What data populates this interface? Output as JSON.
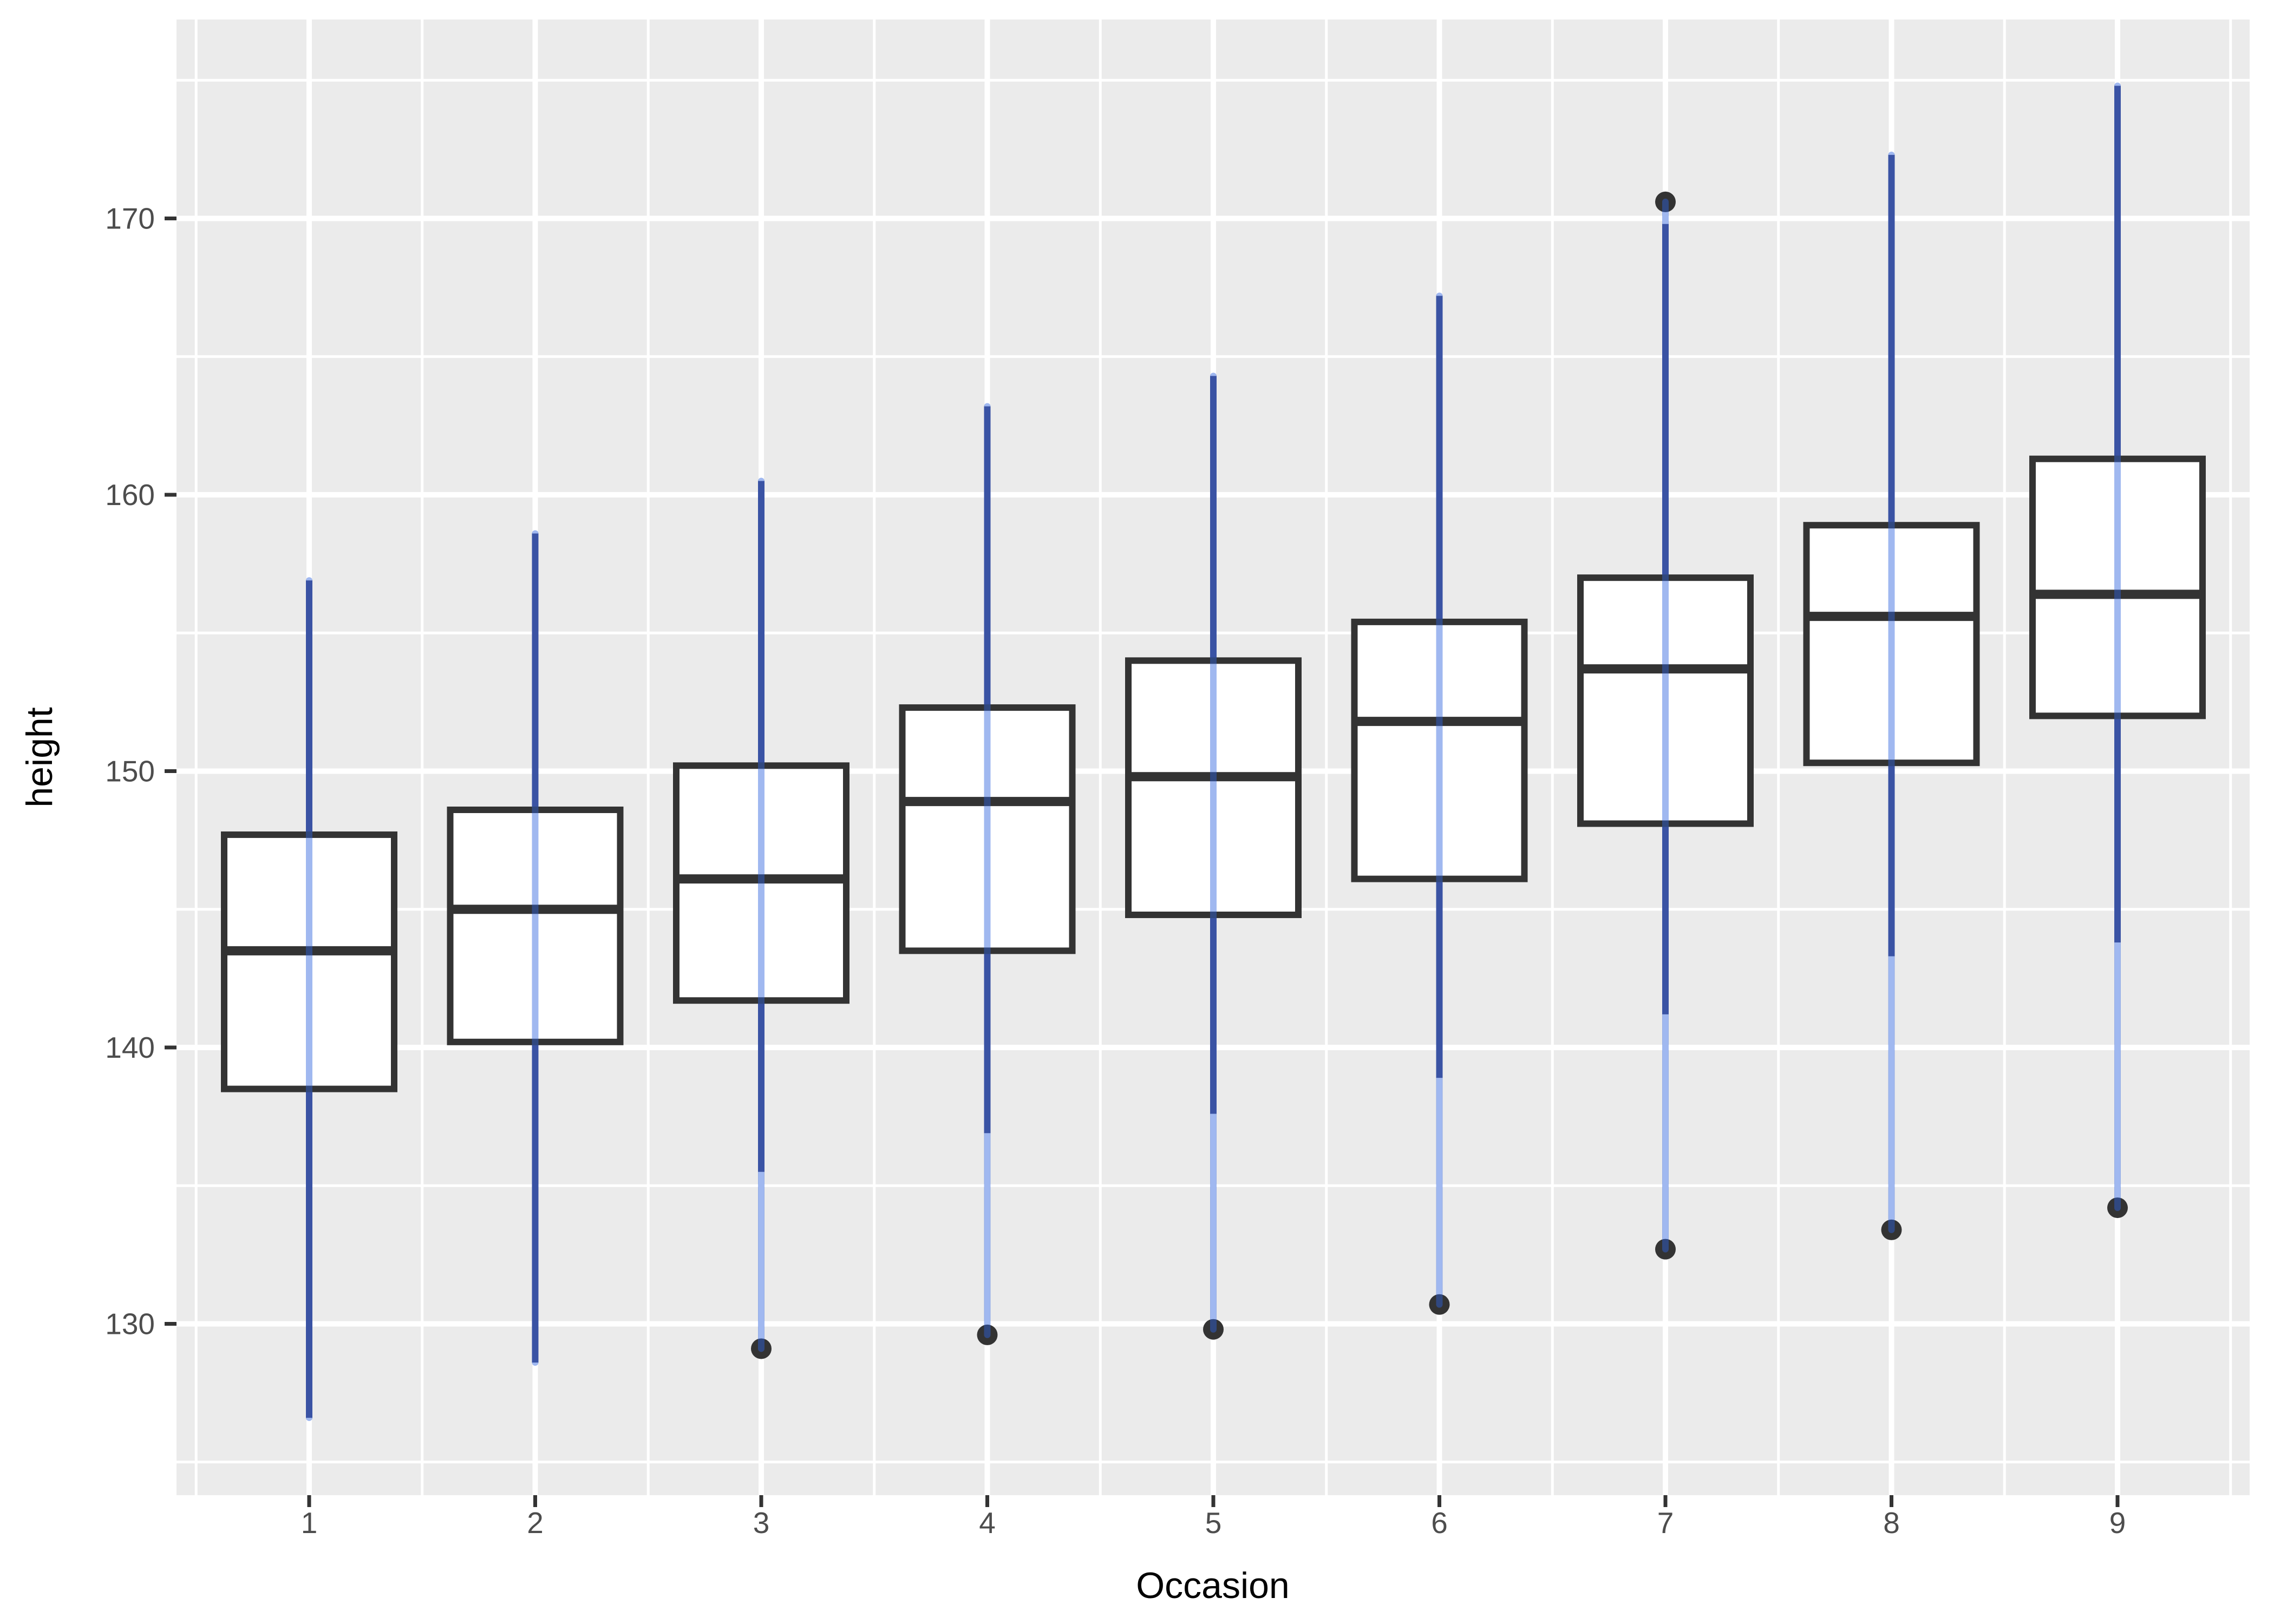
{
  "chart_data": {
    "type": "boxplot",
    "title": "",
    "xlabel": "Occasion",
    "ylabel": "height",
    "categories": [
      "1",
      "2",
      "3",
      "4",
      "5",
      "6",
      "7",
      "8",
      "9"
    ],
    "yticks": [
      130,
      140,
      150,
      160,
      170
    ],
    "y_minor_ticks": [
      125,
      135,
      145,
      155,
      165,
      175
    ],
    "ylim": [
      123.8,
      177.2
    ],
    "grid": "on",
    "legend": "none",
    "series": [
      {
        "occasion": 1,
        "whisker_low": 126.6,
        "q1": 138.5,
        "median": 143.5,
        "q3": 147.7,
        "whisker_high": 156.9,
        "outliers": []
      },
      {
        "occasion": 2,
        "whisker_low": 128.6,
        "q1": 140.2,
        "median": 145.0,
        "q3": 148.6,
        "whisker_high": 158.6,
        "outliers": []
      },
      {
        "occasion": 3,
        "whisker_low": 135.5,
        "q1": 141.7,
        "median": 146.1,
        "q3": 150.2,
        "whisker_high": 160.5,
        "outliers": [
          129.1
        ]
      },
      {
        "occasion": 4,
        "whisker_low": 136.9,
        "q1": 143.5,
        "median": 148.9,
        "q3": 152.3,
        "whisker_high": 163.2,
        "outliers": [
          129.6
        ]
      },
      {
        "occasion": 5,
        "whisker_low": 137.6,
        "q1": 144.8,
        "median": 149.8,
        "q3": 154.0,
        "whisker_high": 164.3,
        "outliers": [
          129.8
        ]
      },
      {
        "occasion": 6,
        "whisker_low": 138.9,
        "q1": 146.1,
        "median": 151.8,
        "q3": 155.4,
        "whisker_high": 167.2,
        "outliers": [
          130.7
        ]
      },
      {
        "occasion": 7,
        "whisker_low": 141.2,
        "q1": 148.1,
        "median": 153.7,
        "q3": 157.0,
        "whisker_high": 169.8,
        "outliers": [
          132.7,
          170.6
        ]
      },
      {
        "occasion": 8,
        "whisker_low": 143.3,
        "q1": 150.3,
        "median": 155.6,
        "q3": 158.9,
        "whisker_high": 172.3,
        "outliers": [
          133.4
        ]
      },
      {
        "occasion": 9,
        "whisker_low": 143.8,
        "q1": 152.0,
        "median": 156.4,
        "q3": 161.3,
        "whisker_high": 174.8,
        "outliers": [
          134.2
        ]
      }
    ],
    "colors": {
      "panel_bg": "#EBEBEB",
      "grid": "#FFFFFF",
      "box_fill": "#FFFFFF",
      "box_border": "#333333",
      "median": "#333333",
      "whisker_base": "#464875",
      "range_line": "rgba(44,97,222,0.45)",
      "outlier_dot": "#333333",
      "tick_mark": "#333333",
      "tick_label": "#4D4D4D",
      "axis_title": "#000000"
    }
  }
}
